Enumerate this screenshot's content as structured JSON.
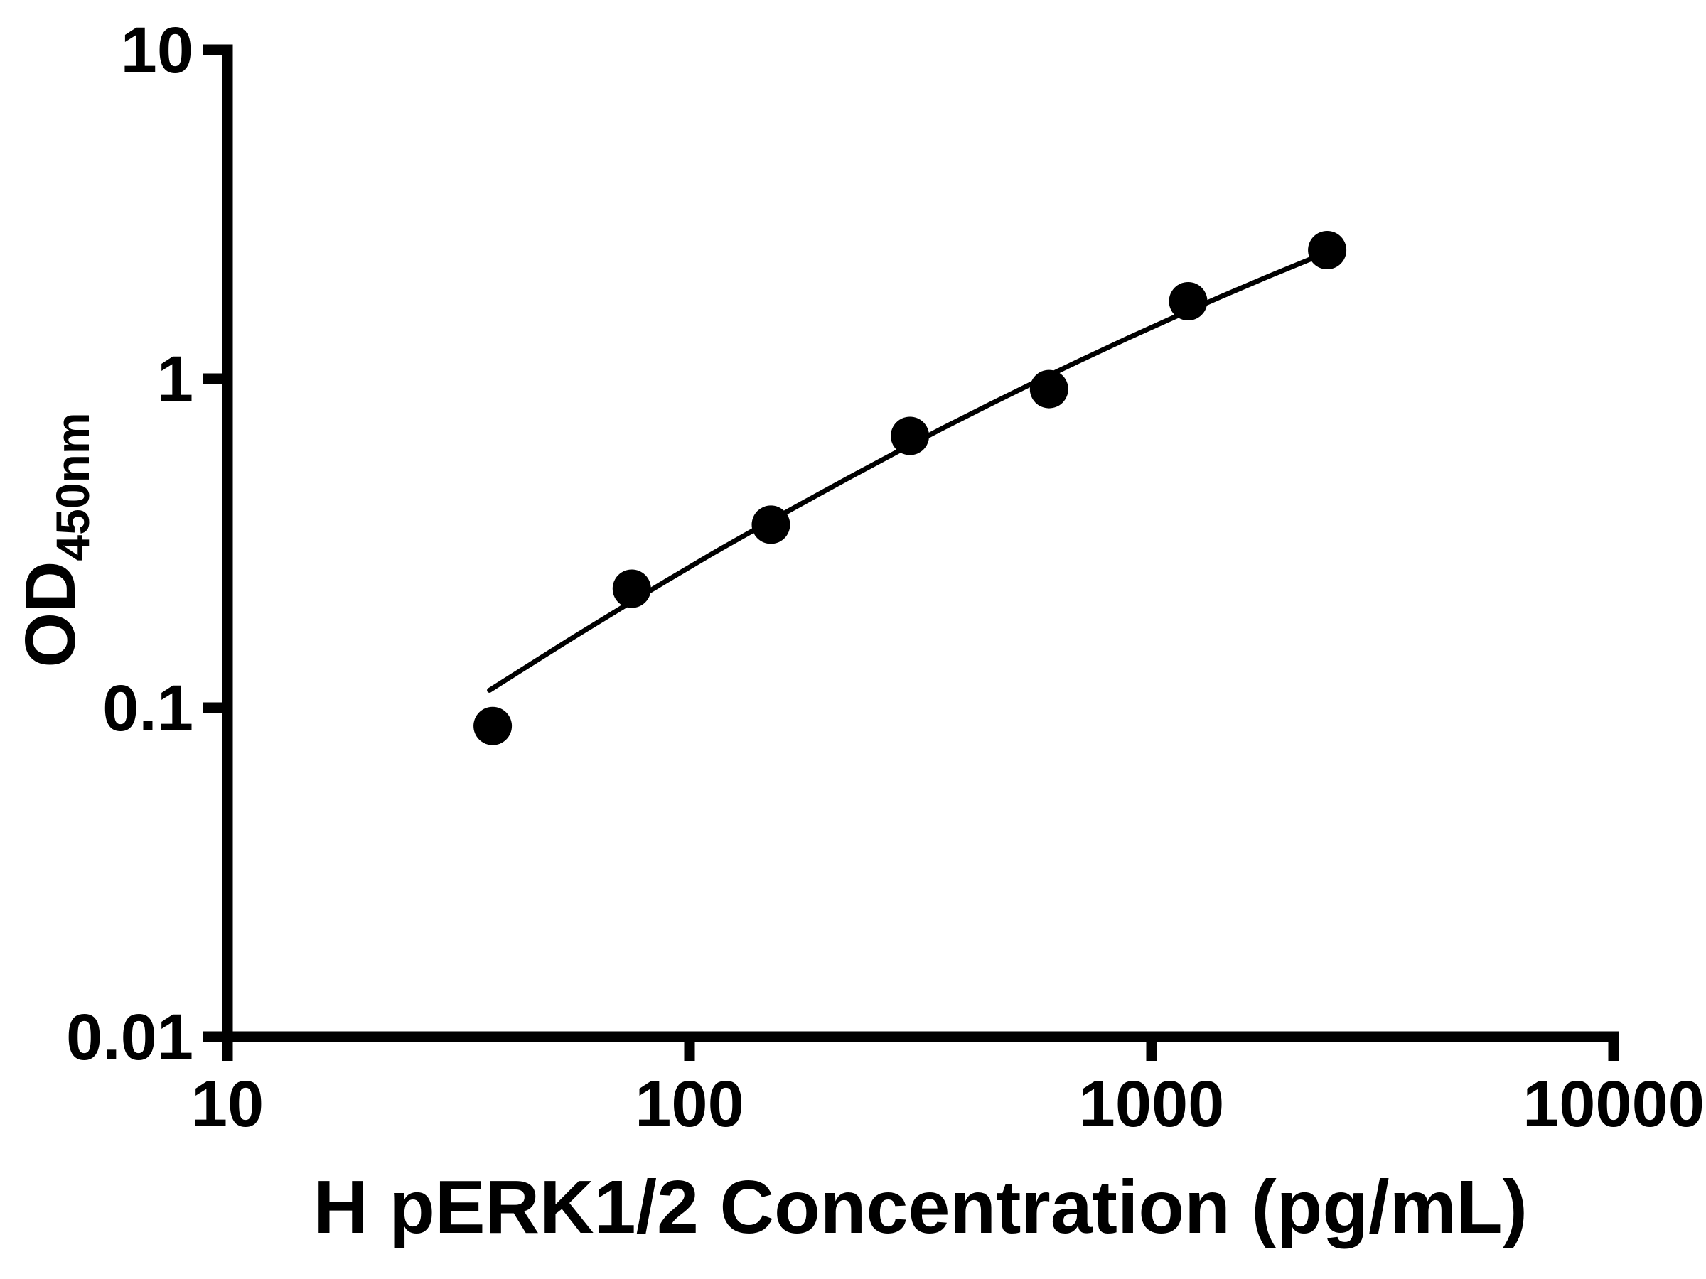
{
  "figure": {
    "background": "#ffffff",
    "foreground": "#000000"
  },
  "chart_data": {
    "type": "scatter",
    "subtype": "standard-curve-log-log",
    "title": "",
    "xlabel": "H pERK1/2 Concentration (pg/mL)",
    "ylabel": {
      "main": "OD",
      "sub": "450nm"
    },
    "x_scale": "log",
    "y_scale": "log",
    "xlim": [
      10,
      10000
    ],
    "ylim": [
      0.01,
      10
    ],
    "grid": false,
    "legend": "none",
    "marker_color": "#000000",
    "line_color": "#000000",
    "x_ticks": [
      {
        "value": 10,
        "label": "10"
      },
      {
        "value": 100,
        "label": "100"
      },
      {
        "value": 1000,
        "label": "1000"
      },
      {
        "value": 10000,
        "label": "10000"
      }
    ],
    "y_ticks": [
      {
        "value": 10,
        "label": "10"
      },
      {
        "value": 1,
        "label": "1"
      },
      {
        "value": 0.1,
        "label": "0.1"
      },
      {
        "value": 0.01,
        "label": "0.01"
      }
    ],
    "points": [
      {
        "x": 37.5,
        "y": 0.088
      },
      {
        "x": 75,
        "y": 0.23
      },
      {
        "x": 150,
        "y": 0.36
      },
      {
        "x": 300,
        "y": 0.67
      },
      {
        "x": 600,
        "y": 0.93
      },
      {
        "x": 1200,
        "y": 1.72
      },
      {
        "x": 2400,
        "y": 2.46
      }
    ],
    "curve": [
      [
        36.9,
        0.113
      ],
      [
        44.7,
        0.134
      ],
      [
        56.2,
        0.164
      ],
      [
        70.8,
        0.2
      ],
      [
        89.1,
        0.243
      ],
      [
        112,
        0.294
      ],
      [
        141,
        0.353
      ],
      [
        178,
        0.423
      ],
      [
        224,
        0.505
      ],
      [
        282,
        0.6
      ],
      [
        355,
        0.71
      ],
      [
        447,
        0.836
      ],
      [
        562,
        0.98
      ],
      [
        708,
        1.144
      ],
      [
        891,
        1.331
      ],
      [
        1122,
        1.54
      ],
      [
        1413,
        1.776
      ],
      [
        1778,
        2.038
      ],
      [
        2455,
        2.455
      ]
    ]
  }
}
